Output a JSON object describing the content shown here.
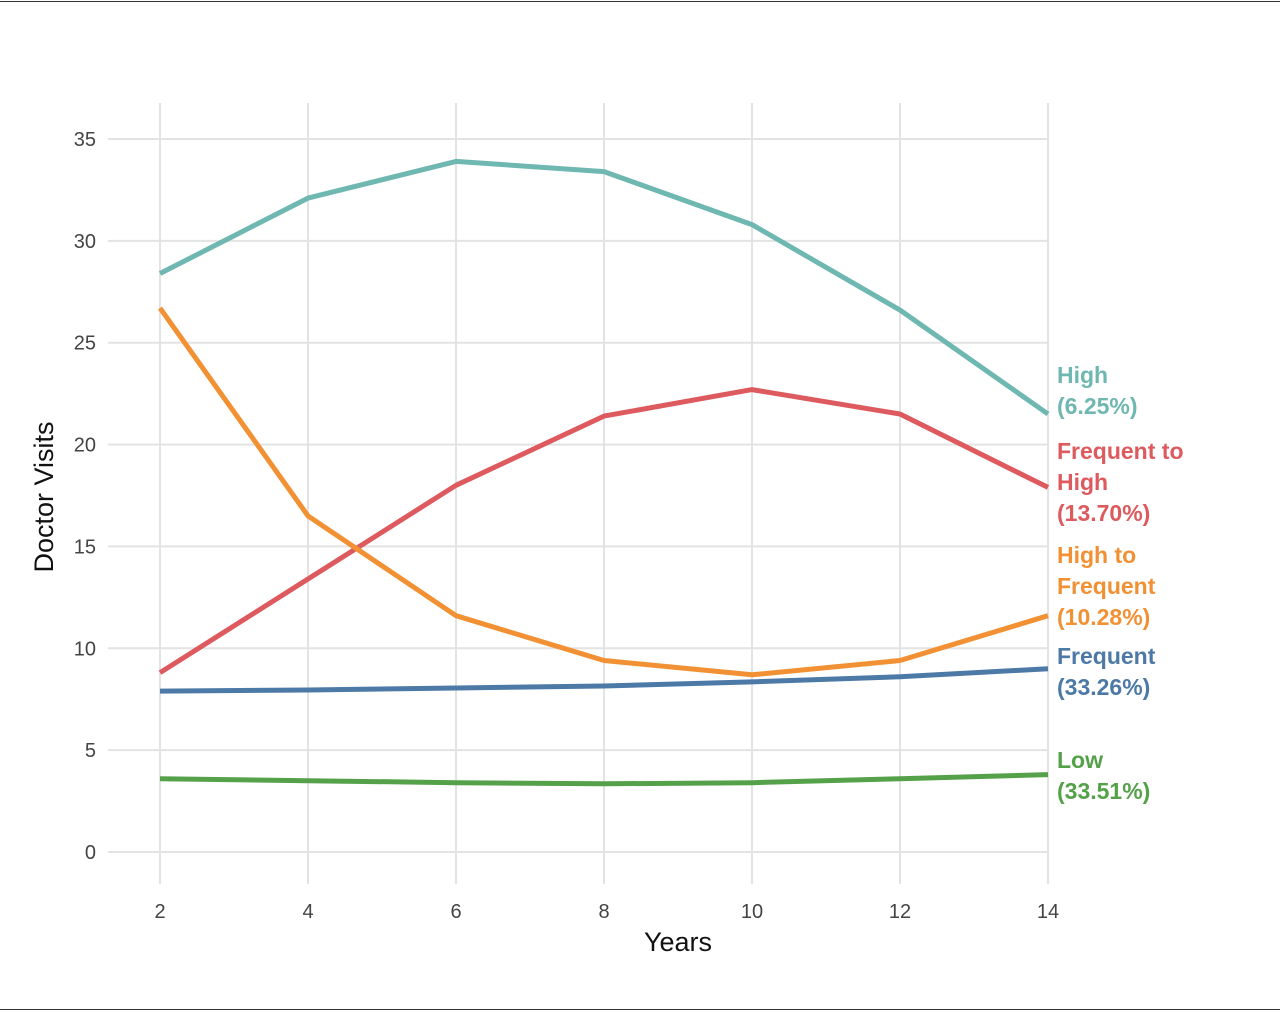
{
  "chart_data": {
    "type": "line",
    "title": "",
    "xlabel": "Years",
    "ylabel": "Doctor Visits",
    "x": [
      2,
      4,
      6,
      8,
      10,
      12,
      14
    ],
    "xticks": [
      "2",
      "4",
      "6",
      "8",
      "10",
      "12",
      "14"
    ],
    "yticks": [
      "0",
      "5",
      "10",
      "15",
      "20",
      "25",
      "30",
      "35"
    ],
    "xlim": [
      2,
      14
    ],
    "ylim": [
      0,
      35
    ],
    "grid": true,
    "legend": "direct labels at right end of each line",
    "series": [
      {
        "name": "High (6.25%)",
        "label_lines": [
          "High",
          "(6.25%)"
        ],
        "color": "#6fb7b1",
        "values": [
          28.4,
          32.1,
          33.9,
          33.4,
          30.8,
          26.6,
          21.5
        ]
      },
      {
        "name": "Frequent to High (13.70%)",
        "label_lines": [
          "Frequent to",
          "High",
          "(13.70%)"
        ],
        "color": "#dd5a5e",
        "values": [
          8.8,
          13.4,
          18.0,
          21.4,
          22.7,
          21.5,
          17.9
        ]
      },
      {
        "name": "High to Frequent (10.28%)",
        "label_lines": [
          "High to",
          "Frequent",
          "(10.28%)"
        ],
        "color": "#f19134",
        "values": [
          26.7,
          16.5,
          11.6,
          9.4,
          8.7,
          9.4,
          11.6
        ]
      },
      {
        "name": "Frequent (33.26%)",
        "label_lines": [
          "Frequent",
          "(33.26%)"
        ],
        "color": "#4d79a7",
        "values": [
          7.9,
          7.95,
          8.05,
          8.15,
          8.35,
          8.6,
          9.0
        ]
      },
      {
        "name": "Low (33.51%)",
        "label_lines": [
          "Low",
          "(33.51%)"
        ],
        "color": "#55a14a",
        "values": [
          3.6,
          3.5,
          3.4,
          3.35,
          3.4,
          3.6,
          3.8
        ]
      }
    ]
  }
}
